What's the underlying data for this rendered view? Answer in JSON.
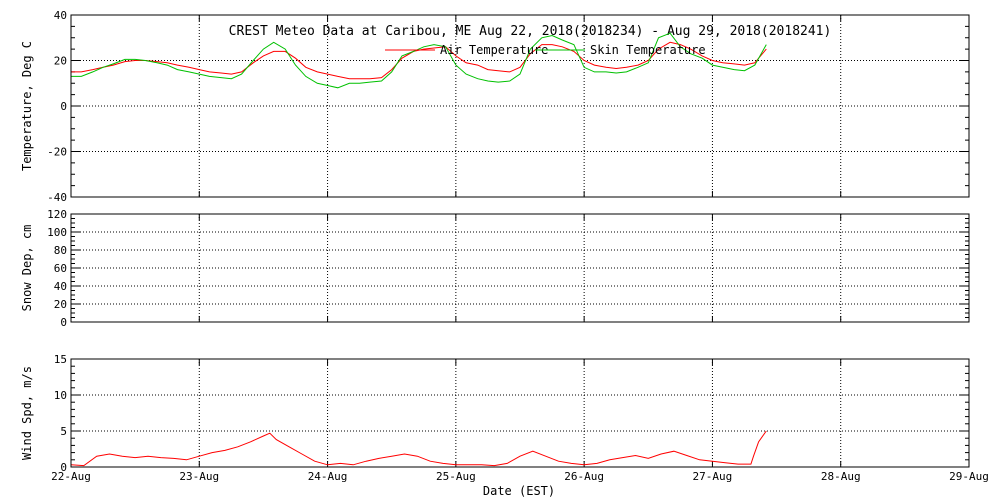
{
  "title": "CREST Meteo Data at Caribou, ME   Aug 22, 2018(2018234) - Aug 29, 2018(2018241)",
  "xlabel": "Date (EST)",
  "x_ticks": [
    "22-Aug",
    "23-Aug",
    "24-Aug",
    "25-Aug",
    "26-Aug",
    "27-Aug",
    "28-Aug",
    "29-Aug"
  ],
  "colors": {
    "air": "#ff0000",
    "skin": "#00c000",
    "wind": "#ff0000",
    "axis": "#000000"
  },
  "chart_data": [
    {
      "type": "line",
      "ylabel": "Temperature, Deg C",
      "ylim": [
        -40,
        40
      ],
      "yticks": [
        -40,
        -20,
        0,
        20,
        40
      ],
      "xlim": [
        0,
        7
      ],
      "grid": true,
      "legend": "top-center",
      "series": [
        {
          "name": "Air Temperature",
          "color_key": "air",
          "x": [
            0,
            0.08,
            0.17,
            0.25,
            0.33,
            0.42,
            0.5,
            0.58,
            0.67,
            0.75,
            0.83,
            0.92,
            1.0,
            1.08,
            1.17,
            1.25,
            1.33,
            1.42,
            1.5,
            1.58,
            1.67,
            1.75,
            1.83,
            1.92,
            2.0,
            2.08,
            2.17,
            2.25,
            2.33,
            2.42,
            2.5,
            2.58,
            2.67,
            2.75,
            2.83,
            2.92,
            3.0,
            3.08,
            3.17,
            3.25,
            3.33,
            3.42,
            3.5,
            3.58,
            3.67,
            3.75,
            3.83,
            3.92,
            4.0,
            4.08,
            4.17,
            4.25,
            4.33,
            4.42,
            4.5,
            4.58,
            4.67,
            4.75,
            4.83,
            4.92,
            5.0,
            5.08,
            5.17,
            5.25,
            5.33,
            5.42
          ],
          "values": [
            15,
            15,
            16,
            17,
            18,
            19.5,
            20,
            20,
            19.5,
            19,
            18,
            17,
            16,
            15,
            14.5,
            14,
            15,
            19,
            22,
            24,
            24,
            21,
            17,
            15,
            14,
            13,
            12,
            12,
            12,
            12.5,
            16,
            21,
            24,
            25,
            25.5,
            26,
            22,
            19,
            18,
            16,
            15.5,
            15,
            17,
            23,
            27,
            27,
            26,
            24,
            20,
            18,
            17,
            16.5,
            17,
            18,
            20,
            25,
            28,
            27,
            25,
            22,
            20,
            19,
            18.5,
            18,
            19,
            25
          ]
        },
        {
          "name": "Skin Temperature",
          "color_key": "skin",
          "x": [
            0,
            0.08,
            0.17,
            0.25,
            0.33,
            0.42,
            0.5,
            0.58,
            0.67,
            0.75,
            0.83,
            0.92,
            1.0,
            1.08,
            1.17,
            1.25,
            1.33,
            1.42,
            1.5,
            1.58,
            1.67,
            1.75,
            1.83,
            1.92,
            2.0,
            2.08,
            2.17,
            2.25,
            2.33,
            2.42,
            2.5,
            2.58,
            2.67,
            2.75,
            2.83,
            2.92,
            3.0,
            3.08,
            3.17,
            3.25,
            3.33,
            3.42,
            3.5,
            3.58,
            3.67,
            3.75,
            3.83,
            3.92,
            4.0,
            4.08,
            4.17,
            4.25,
            4.33,
            4.42,
            4.5,
            4.58,
            4.67,
            4.75,
            4.83,
            4.92,
            5.0,
            5.08,
            5.17,
            5.25,
            5.33,
            5.42
          ],
          "values": [
            13,
            13,
            15,
            17,
            18.5,
            20.5,
            20.5,
            20,
            19,
            18,
            16,
            15,
            14,
            13,
            12.5,
            12,
            14,
            20,
            25,
            28,
            25,
            18,
            13,
            10,
            9,
            8,
            10,
            10,
            10.5,
            11,
            15,
            22,
            24,
            26,
            27,
            26,
            18,
            14,
            12,
            11,
            10.5,
            11,
            14,
            25,
            30,
            31,
            29,
            27,
            17,
            15,
            15,
            14.5,
            15,
            17,
            19,
            30,
            32,
            26,
            23,
            21,
            18,
            17,
            16,
            15.5,
            18,
            27
          ]
        }
      ]
    },
    {
      "type": "line",
      "ylabel": "Snow Dep, cm",
      "ylim": [
        0,
        120
      ],
      "yticks": [
        0,
        20,
        40,
        60,
        80,
        100,
        120
      ],
      "xlim": [
        0,
        7
      ],
      "grid": true,
      "series": []
    },
    {
      "type": "line",
      "ylabel": "Wind Spd, m/s",
      "ylim": [
        0,
        15
      ],
      "yticks": [
        0,
        5,
        10,
        15
      ],
      "xlim": [
        0,
        7
      ],
      "grid": true,
      "series": [
        {
          "color_key": "wind",
          "x": [
            0,
            0.1,
            0.2,
            0.3,
            0.4,
            0.5,
            0.6,
            0.7,
            0.8,
            0.9,
            1.0,
            1.1,
            1.2,
            1.3,
            1.4,
            1.5,
            1.55,
            1.6,
            1.7,
            1.8,
            1.9,
            2.0,
            2.1,
            2.2,
            2.3,
            2.4,
            2.5,
            2.6,
            2.7,
            2.8,
            2.9,
            3.0,
            3.1,
            3.2,
            3.3,
            3.4,
            3.5,
            3.6,
            3.7,
            3.8,
            3.9,
            4.0,
            4.1,
            4.2,
            4.3,
            4.4,
            4.5,
            4.6,
            4.7,
            4.8,
            4.9,
            5.0,
            5.1,
            5.2,
            5.3,
            5.32,
            5.36,
            5.42
          ],
          "values": [
            0.3,
            0.2,
            1.5,
            1.8,
            1.5,
            1.3,
            1.5,
            1.3,
            1.2,
            1.0,
            1.5,
            2.0,
            2.3,
            2.8,
            3.5,
            4.3,
            4.7,
            3.8,
            2.8,
            1.8,
            0.8,
            0.3,
            0.5,
            0.3,
            0.8,
            1.2,
            1.5,
            1.8,
            1.5,
            0.8,
            0.5,
            0.3,
            0.3,
            0.3,
            0.2,
            0.5,
            1.5,
            2.2,
            1.5,
            0.8,
            0.5,
            0.3,
            0.5,
            1.0,
            1.3,
            1.6,
            1.2,
            1.8,
            2.2,
            1.6,
            1.0,
            0.8,
            0.6,
            0.4,
            0.4,
            1.5,
            3.5,
            5.0
          ]
        }
      ]
    }
  ]
}
